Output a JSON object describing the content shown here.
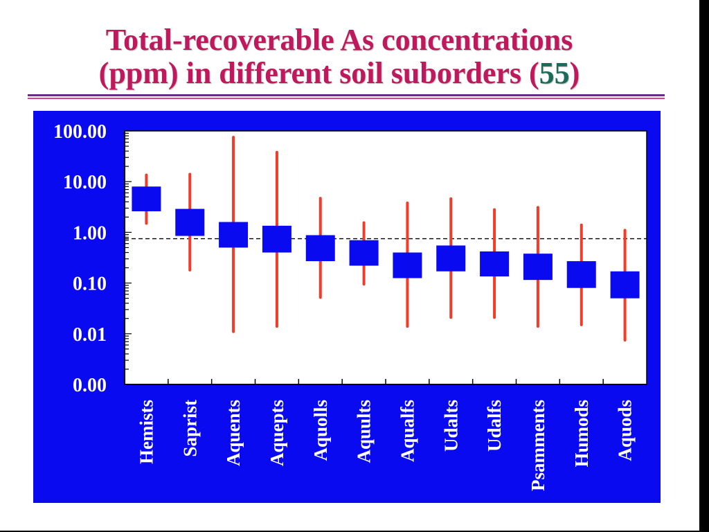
{
  "slide": {
    "title_line1": "Total-recoverable As concentrations",
    "title_line2_prefix": "(ppm) in different soil suborders (",
    "title_line2_highlight": "55",
    "title_line2_suffix": ")"
  },
  "colors": {
    "title": "#c0185c",
    "title_highlight": "#1a6b5a",
    "panel_background": "#0a0af0",
    "plot_background": "#ffffff",
    "box_fill": "#0a0af0",
    "whisker": "#f03c28",
    "reference_line": "#000000"
  },
  "chart_data": {
    "type": "range",
    "title": "",
    "xlabel": "",
    "ylabel": "",
    "y_scale": "log",
    "ylim": [
      0.001,
      100
    ],
    "y_tick_values": [
      0.001,
      0.01,
      0.1,
      1,
      10,
      100
    ],
    "y_tick_labels": [
      "0.00",
      "0.01",
      "0.10",
      "1.00",
      "10.00",
      "100.00"
    ],
    "reference_line": 0.75,
    "grid": false,
    "categories": [
      "Hemists",
      "Saprist",
      "Aquents",
      "Aquepts",
      "Aquolls",
      "Aquults",
      "Aqualfs",
      "Udalts",
      "Udalfs",
      "Psamments",
      "Humods",
      "Aquods"
    ],
    "whisker_low": [
      1.5,
      0.18,
      0.011,
      0.014,
      0.052,
      0.095,
      0.014,
      0.021,
      0.021,
      0.014,
      0.015,
      0.0075
    ],
    "whisker_high": [
      13.5,
      14,
      75,
      38,
      4.7,
      1.55,
      3.8,
      4.6,
      2.8,
      3.1,
      1.4,
      1.1
    ],
    "box_low": [
      2.6,
      0.85,
      0.5,
      0.4,
      0.27,
      0.22,
      0.125,
      0.17,
      0.135,
      0.115,
      0.08,
      0.05
    ],
    "box_high": [
      8.0,
      2.9,
      1.6,
      1.35,
      0.88,
      0.7,
      0.4,
      0.55,
      0.42,
      0.38,
      0.27,
      0.17
    ]
  }
}
